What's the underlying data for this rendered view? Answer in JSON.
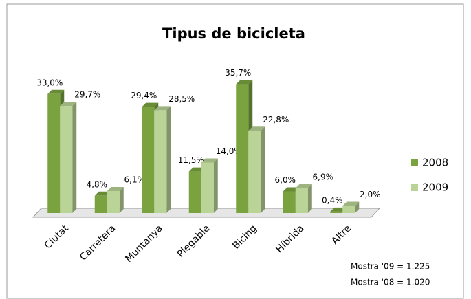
{
  "chart_data": {
    "type": "bar3d",
    "title": "Tipus de bicicleta",
    "categories": [
      "Ciutat",
      "Carretera",
      "Muntanya",
      "Plegable",
      "Bicing",
      "Híbrida",
      "Altre"
    ],
    "series": [
      {
        "name": "2008",
        "color": "#7aa33f",
        "values": [
          33.0,
          4.8,
          29.4,
          11.5,
          35.7,
          6.0,
          0.4
        ],
        "value_labels": [
          "33,0%",
          "4,8%",
          "29,4%",
          "11,5%",
          "35,7%",
          "6,0%",
          "0,4%"
        ]
      },
      {
        "name": "2009",
        "color": "#b9d496",
        "values": [
          29.7,
          6.1,
          28.5,
          14.0,
          22.8,
          6.9,
          2.0
        ],
        "value_labels": [
          "29,7%",
          "6,1%",
          "28,5%",
          "14,0%",
          "22,8%",
          "6,9%",
          "2,0%"
        ]
      }
    ],
    "annotations": [
      "Mostra '09 = 1.225",
      "Mostra '08 = 1.020"
    ],
    "legend": "right"
  }
}
